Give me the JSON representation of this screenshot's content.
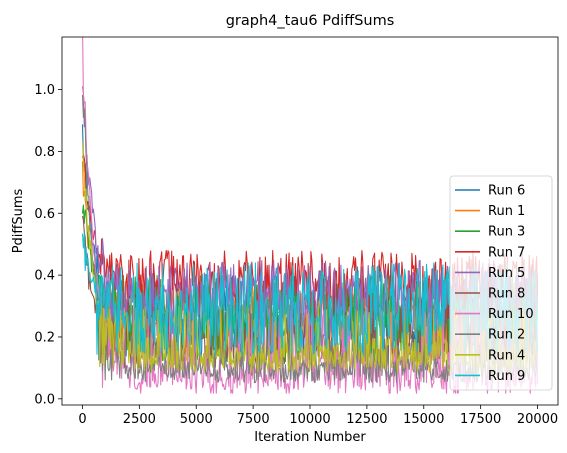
{
  "chart_data": {
    "type": "line",
    "title": "graph4_tau6 PdiffSums",
    "xlabel": "Iteration Number",
    "ylabel": "PdiffSums",
    "xlim": [
      -900,
      20900
    ],
    "ylim": [
      -0.02,
      1.17
    ],
    "x_ticks": [
      0,
      2500,
      5000,
      7500,
      10000,
      12500,
      15000,
      17500,
      20000
    ],
    "y_ticks": [
      0.0,
      0.2,
      0.4,
      0.6,
      0.8,
      1.0
    ],
    "y_tick_labels": [
      "0.0",
      "0.2",
      "0.4",
      "0.6",
      "0.8",
      "1.0"
    ],
    "legend_position": "lower-right",
    "grid": false,
    "n_iterations": 20000,
    "series": [
      {
        "name": "Run 6",
        "color": "#1f77b4",
        "start": 0.85,
        "steady_low": 0.12,
        "steady_high": 0.4,
        "steady_mean": 0.27
      },
      {
        "name": "Run 1",
        "color": "#ff7f0e",
        "start": 0.7,
        "steady_low": 0.13,
        "steady_high": 0.38,
        "steady_mean": 0.26
      },
      {
        "name": "Run 3",
        "color": "#2ca02c",
        "start": 0.65,
        "steady_low": 0.12,
        "steady_high": 0.4,
        "steady_mean": 0.27
      },
      {
        "name": "Run 7",
        "color": "#d62728",
        "start": 0.8,
        "steady_low": 0.25,
        "steady_high": 0.48,
        "steady_mean": 0.38
      },
      {
        "name": "Run 5",
        "color": "#9467bd",
        "start": 1.0,
        "steady_low": 0.2,
        "steady_high": 0.45,
        "steady_mean": 0.34
      },
      {
        "name": "Run 8",
        "color": "#8c564b",
        "start": 0.55,
        "steady_low": 0.1,
        "steady_high": 0.3,
        "steady_mean": 0.18
      },
      {
        "name": "Run 10",
        "color": "#e377c2",
        "start": 1.13,
        "steady_low": 0.03,
        "steady_high": 0.3,
        "steady_mean": 0.08
      },
      {
        "name": "Run 2",
        "color": "#7f7f7f",
        "start": 1.03,
        "steady_low": 0.06,
        "steady_high": 0.2,
        "steady_mean": 0.09
      },
      {
        "name": "Run 4",
        "color": "#bcbd22",
        "start": 0.85,
        "steady_low": 0.1,
        "steady_high": 0.3,
        "steady_mean": 0.14
      },
      {
        "name": "Run 9",
        "color": "#17becf",
        "start": 0.52,
        "steady_low": 0.14,
        "steady_high": 0.44,
        "steady_mean": 0.28
      }
    ]
  }
}
